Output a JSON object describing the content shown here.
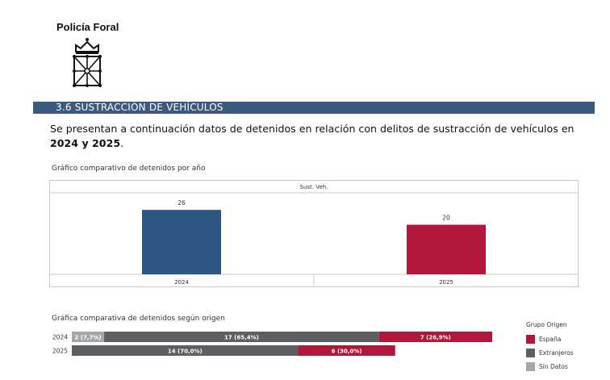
{
  "header": {
    "org_name": "Policía Foral"
  },
  "section": {
    "title": "3.6 SUSTRACCIÓN DE VEHÍCULOS",
    "intro_text": "Se presentan a continuación datos de detenidos en relación con delitos de sustracción de vehículos en ",
    "intro_year1": "2024",
    "intro_connector": " y ",
    "intro_year2": "2025",
    "intro_end": "."
  },
  "colors": {
    "bar_2024": "#2e5682",
    "bar_2025": "#b0173a",
    "espana": "#b0173a",
    "extranjeros": "#5d5f63",
    "sin_datos": "#a4a7ab",
    "section_bar": "#3a5a80"
  },
  "chart_data": [
    {
      "type": "bar",
      "title": "Gráfico comparativo de detenidos por año",
      "panel_header": "Sust. Veh.",
      "categories": [
        "2024",
        "2025"
      ],
      "values": [
        26,
        20
      ],
      "ylim": [
        0,
        28
      ]
    },
    {
      "type": "bar",
      "orientation": "horizontal-stacked",
      "title": "Gráfica comparativa de detenidos según origen",
      "categories": [
        "2024",
        "2025"
      ],
      "series": [
        {
          "name": "Sin Datos",
          "values": [
            2,
            0
          ],
          "labels": [
            "2 (7,7%)",
            ""
          ]
        },
        {
          "name": "Extranjeros",
          "values": [
            17,
            14
          ],
          "labels": [
            "17 (65,4%)",
            "14 (70,0%)"
          ]
        },
        {
          "name": "España",
          "values": [
            7,
            6
          ],
          "labels": [
            "7 (26,9%)",
            "6 (30,0%)"
          ]
        }
      ],
      "xlim": [
        0,
        26
      ]
    }
  ],
  "legend": {
    "title": "Grupo Origen",
    "items": [
      "España",
      "Extranjeros",
      "Sin Datos"
    ]
  }
}
